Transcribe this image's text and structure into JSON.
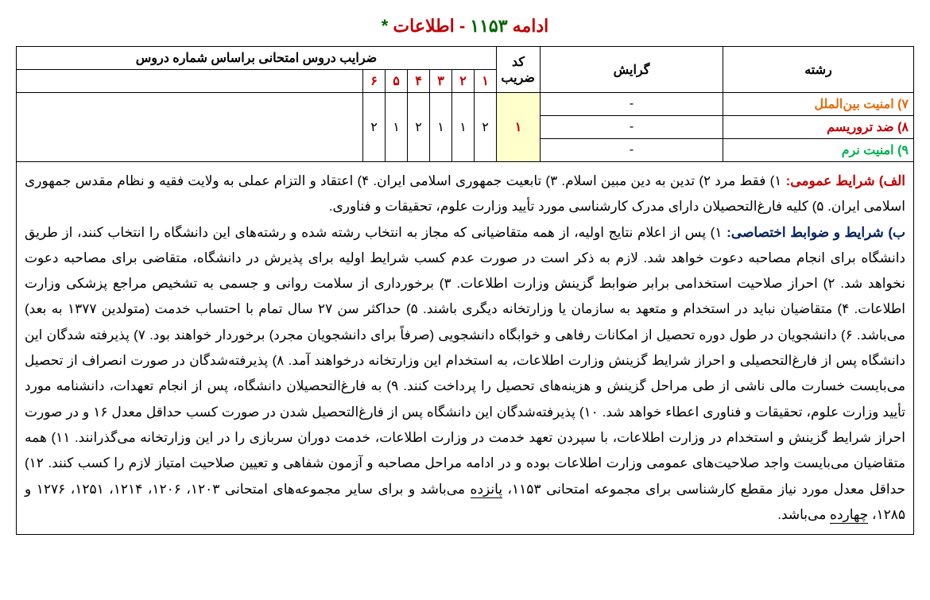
{
  "title": {
    "part1": "ادامه ",
    "part2": "۱۱۵۳",
    "part3": " - اطلاعات ",
    "star": "*"
  },
  "headers": {
    "reshteh": "رشته",
    "gerayesh": "گرایش",
    "code": "کد ضریب",
    "coeffs": "ضرایب دروس امتحانی براساس شماره دروس",
    "nums": [
      "۱",
      "۲",
      "۳",
      "۴",
      "۵",
      "۶"
    ]
  },
  "rows": [
    {
      "label": "۷) امنیت بین‌الملل",
      "cls": "num7",
      "gerayesh": "-"
    },
    {
      "label": "۸) ضد تروریسم",
      "cls": "num8",
      "gerayesh": "-"
    },
    {
      "label": "۹) امنیت نرم",
      "cls": "num9",
      "gerayesh": "-"
    }
  ],
  "code_value": "۱",
  "coeff_values": [
    "۲",
    "۱",
    "۱",
    "۲",
    "۱",
    "۲"
  ],
  "sectionA": {
    "label": "الف) شرایط عمومی:",
    "text": " ۱) فقط مرد ۲) تدین به دین مبین اسلام. ۳) تابعیت جمهوری اسلامی ایران. ۴) اعتقاد و التزام عملی به ولایت فقیه و نظام مقدس جمهوری اسلامی ایران.  ۵) کلیه فارغ‌التحصیلان دارای مدرک کارشناسی مورد تأیید وزارت علوم، تحقیقات و فناوری."
  },
  "sectionB": {
    "label": "ب) شرایط و ضوابط اختصاصی:",
    "text_part1": " ۱) پس از اعلام نتایج اولیه، از همه متقاضیانی که مجاز به انتخاب رشته شده و رشته‌های این دانشگاه را انتخاب کنند، از طریق دانشگاه برای انجام مصاحبه دعوت خواهد شد. لازم به ذکر است در صورت عدم کسب شرایط اولیه برای پذیرش در دانشگاه، متقاضی برای مصاحبه دعوت نخواهد شد. ۲) احراز صلاحیت استخدامی برابر ضوابط گزینش وزارت اطلاعات. ۳) برخورداری از سلامت روانی و جسمی به تشخیص مراجع پزشکی وزارت اطلاعات. ۴) متقاضیان نباید در استخدام و متعهد به سازمان یا وزارتخانه دیگری باشند. ۵) حداکثر سن ۲۷ سال تمام با احتساب خدمت (متولدین ۱۳۷۷ به بعد) می‌باشد. ۶) دانشجویان در طول دوره تحصیل از امکانات رفاهی و خوابگاه دانشجویی (صرفاً برای دانشجویان مجرد) برخوردار خواهند بود. ۷) پذیرفته شدگان این دانشگاه پس از فارغ‌التحصیلی و احراز شرایط گزینش وزارت اطلاعات، به استخدام این وزارتخانه درخواهند آمد. ۸) پذیرفته‌شدگان در صورت انصراف از تحصیل می‌بایست خسارت مالی ناشی از طی مراحل گزینش و هزینه‌های تحصیل را پرداخت کنند. ۹) به فارغ‌التحصیلان دانشگاه، پس از انجام تعهدات، دانشنامه مورد تأیید وزارت علوم، تحقیقات و فناوری اعطاء خواهد شد. ۱۰) پذیرفته‌شدگان این دانشگاه پس از فارغ‌التحصیل شدن در صورت کسب حداقل معدل ۱۶ و در صورت احراز شرایط گزینش و استخدام در وزارت اطلاعات، با سپردن تعهد خدمت در وزارت اطلاعات، خدمت دوران سربازی را در این وزارتخانه می‌گذرانند. ۱۱) همه متقاضیان می‌بایست واجد صلاحیت‌های عمومی وزارت اطلاعات بوده و در ادامه مراحل مصاحبه و آزمون شفاهی و تعیین صلاحیت امتیاز لازم را کسب کنند. ۱۲) حداقل معدل مورد نیاز مقطع کارشناسی برای مجموعه امتحانی ۱۱۵۳، ",
    "underline1": "پانزده",
    "text_part2": " می‌باشد و برای سایر مجموعه‌های امتحانی ۱۲۰۳، ۱۲۰۶، ۱۲۱۴، ۱۲۵۱، ۱۲۷۶ و ۱۲۸۵، ",
    "underline2": "چهارده",
    "text_part3": " می‌باشد."
  }
}
